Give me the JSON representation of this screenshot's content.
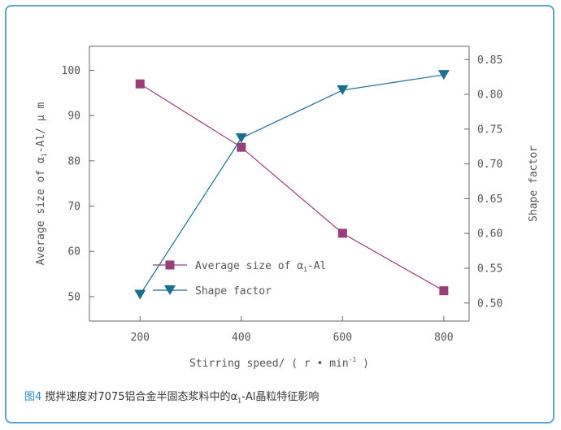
{
  "chart_data": {
    "type": "line",
    "xlabel": "Stirring speed/ ( r • min",
    "xlabel_sup": "-1",
    "xlabel_end": " )",
    "ylabel_left": "Average size of  α",
    "ylabel_left_sub": "1",
    "ylabel_left_end": "-Al/ μ m",
    "ylabel_right": "Shape factor",
    "x_ticks": [
      200,
      400,
      600,
      800
    ],
    "y_left_ticks": [
      50,
      60,
      70,
      80,
      90,
      100
    ],
    "y_right_ticks": [
      "0.50",
      "0.55",
      "0.60",
      "0.65",
      "0.70",
      "0.75",
      "0.80",
      "0.85"
    ],
    "xlim": [
      100,
      850
    ],
    "ylim_left": [
      44.6,
      105.3
    ],
    "ylim_right": [
      0.474,
      0.869
    ],
    "grid": false,
    "legend_position": "lower-left",
    "series": [
      {
        "name": "Average size of  α",
        "name_sub": "1",
        "name_end": "-Al",
        "axis": "left",
        "marker": "square",
        "color": "#9b3d7a",
        "x": [
          200,
          400,
          600,
          800
        ],
        "y": [
          97.0,
          83.0,
          64.0,
          51.3
        ]
      },
      {
        "name": "Shape factor",
        "axis": "right",
        "marker": "triangle-down",
        "color": "#16708f",
        "x": [
          200,
          400,
          600,
          800
        ],
        "y": [
          0.512,
          0.737,
          0.806,
          0.828
        ]
      }
    ]
  },
  "caption": {
    "figure_number": "图4",
    "text": " 搅拌速度对7075铝合金半固态浆料中的α",
    "sub": "1",
    "text_end": "-Al晶粒特征影响"
  },
  "colors": {
    "frame_border": "#5ba7cf",
    "caption_figure_number": "#2a8bc4",
    "axis": "#555555"
  }
}
